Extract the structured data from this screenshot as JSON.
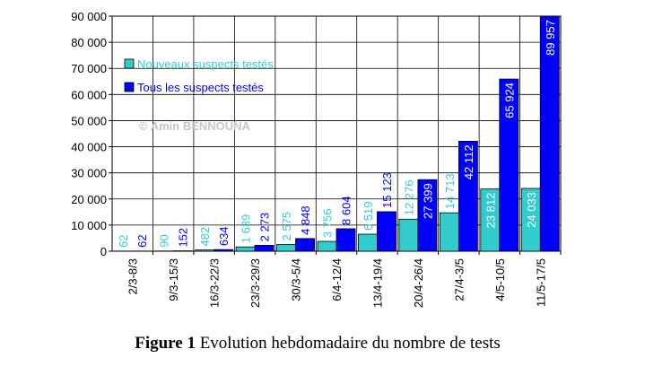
{
  "chart_data": {
    "type": "bar",
    "categories": [
      "2/3-8/3",
      "9/3-15/3",
      "16/3-22/3",
      "23/3-29/3",
      "30/3-5/4",
      "6/4-12/4",
      "13/4-19/4",
      "20/4-26/4",
      "27/4-3/5",
      "4/5-10/5",
      "11/5-17/5"
    ],
    "series": [
      {
        "name": "Nouveaux suspects testés",
        "color": "#33cccc",
        "values": [
          62,
          90,
          482,
          1639,
          2575,
          3756,
          6519,
          12276,
          14713,
          23812,
          24033
        ],
        "value_labels": [
          "62",
          "90",
          "482",
          "1 639",
          "2 575",
          "3 756",
          "6 519",
          "12 276",
          "14 713",
          "23 812",
          "24 033"
        ]
      },
      {
        "name": "Tous les suspects testés",
        "color": "#0000ff",
        "values": [
          62,
          152,
          634,
          2273,
          4848,
          8604,
          15123,
          27399,
          42112,
          65924,
          89957
        ],
        "value_labels": [
          "62",
          "152",
          "634",
          "2 273",
          "4 848",
          "8 604",
          "15 123",
          "27 399",
          "42 112",
          "65 924",
          "89 957"
        ]
      }
    ],
    "ylim": [
      0,
      90000
    ],
    "yticks": [
      {
        "value": 0,
        "label": "0"
      },
      {
        "value": 10000,
        "label": "10 000"
      },
      {
        "value": 20000,
        "label": "20 000"
      },
      {
        "value": 30000,
        "label": "30 000"
      },
      {
        "value": 40000,
        "label": "40 000"
      },
      {
        "value": 50000,
        "label": "50 000"
      },
      {
        "value": 60000,
        "label": "60 000"
      },
      {
        "value": 70000,
        "label": "70 000"
      },
      {
        "value": 80000,
        "label": "80 000"
      },
      {
        "value": 90000,
        "label": "90 000"
      }
    ],
    "grid": true,
    "legend": "upper left",
    "watermark": "© Amin BENNOUNA",
    "caption_label": "Figure 1",
    "caption_text": "Evolution hebdomadaire du nombre de tests"
  }
}
